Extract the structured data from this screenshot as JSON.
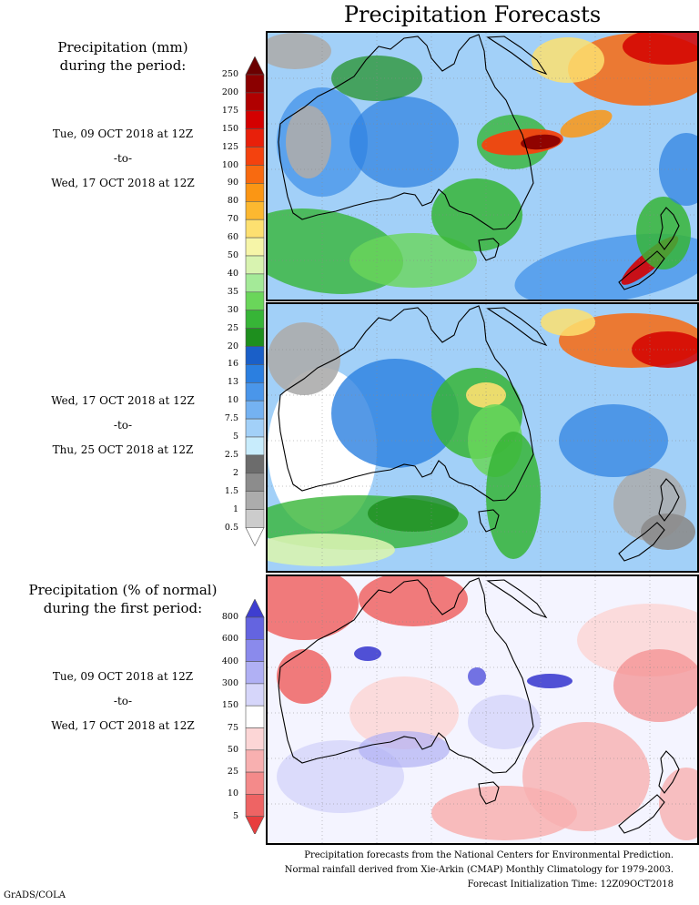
{
  "title": "Precipitation Forecasts",
  "precip_legend": {
    "title_line1": "Precipitation (mm)",
    "title_line2": "during the period:",
    "levels": [
      "250",
      "200",
      "175",
      "150",
      "125",
      "100",
      "90",
      "80",
      "70",
      "60",
      "50",
      "40",
      "35",
      "30",
      "25",
      "20",
      "16",
      "13",
      "10",
      "7.5",
      "5",
      "2.5",
      "2",
      "1.5",
      "1",
      "0.5"
    ],
    "colors": [
      "#6b0000",
      "#8b0000",
      "#b00000",
      "#d40000",
      "#e8200a",
      "#f4420e",
      "#f86a10",
      "#fb9614",
      "#fcb830",
      "#fde070",
      "#f6f5a8",
      "#d8f3b0",
      "#a4ea98",
      "#6ad65a",
      "#37b537",
      "#1e8f1e",
      "#1a5fc8",
      "#2b7fe0",
      "#4a96ea",
      "#74b2f2",
      "#a2d0f8",
      "#c8ecfc",
      "#6c6c6c",
      "#8c8c8c",
      "#acacac",
      "#cccccc",
      "#ffffff"
    ]
  },
  "period1": {
    "start": "Tue, 09 OCT 2018 at 12Z",
    "sep": "-to-",
    "end": "Wed, 17 OCT 2018 at 12Z"
  },
  "period2": {
    "start": "Wed, 17 OCT 2018 at 12Z",
    "sep": "-to-",
    "end": "Thu, 25 OCT 2018 at 12Z"
  },
  "pct_legend": {
    "title_line1": "Precipitation (% of normal)",
    "title_line2": "during the first period:",
    "levels": [
      "800",
      "600",
      "400",
      "300",
      "150",
      "75",
      "50",
      "25",
      "10",
      "5"
    ],
    "colors": [
      "#3e3ed0",
      "#6464e0",
      "#8a8aec",
      "#b0b0f4",
      "#d6d6fa",
      "#ffffff",
      "#fcd6d6",
      "#f8b0b0",
      "#f48a8a",
      "#ee6464",
      "#e83e3e"
    ]
  },
  "period3": {
    "start": "Tue, 09 OCT 2018 at 12Z",
    "sep": "-to-",
    "end": "Wed, 17 OCT 2018 at 12Z"
  },
  "footer": {
    "line1": "Precipitation forecasts from the National Centers for Environmental Prediction.",
    "line2": "Normal rainfall derived from Xie-Arkin (CMAP) Monthly Climatology for 1979-2003.",
    "line3": "Forecast Initialization Time: 12Z09OCT2018"
  },
  "credit": "GrADS/COLA"
}
